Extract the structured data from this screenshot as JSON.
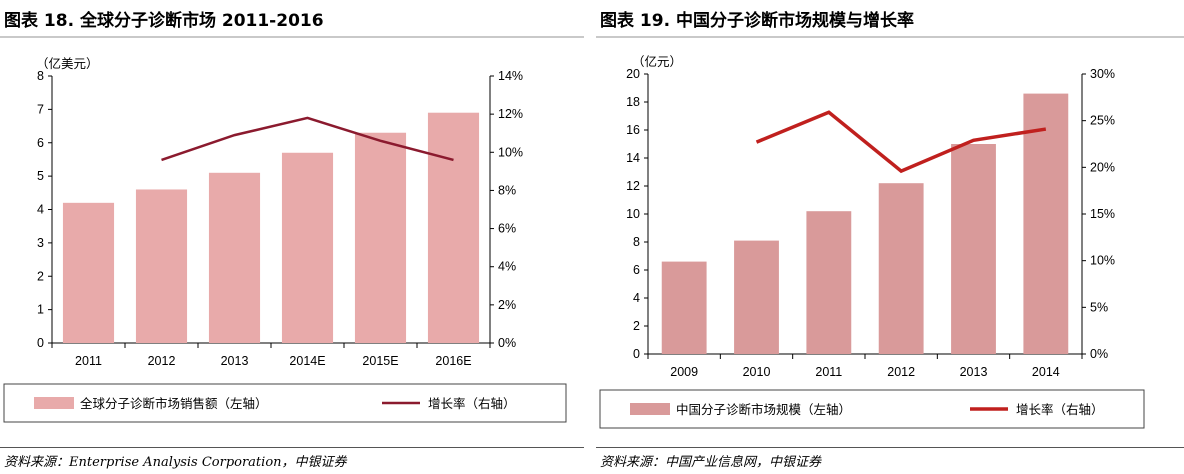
{
  "left": {
    "title": "图表 18. 全球分子诊断市场 2011-2016",
    "source": "资料来源：Enterprise Analysis Corporation，中银证券",
    "unit": "（亿美元）",
    "legend": {
      "bar": "全球分子诊断市场销售额（左轴）",
      "line": "增长率（右轴）"
    },
    "colors": {
      "bar": "#e8aaaa",
      "line": "#8b1a2e"
    },
    "chart_data": {
      "type": "bar",
      "categories": [
        "2011",
        "2012",
        "2013",
        "2014E",
        "2015E",
        "2016E"
      ],
      "series": [
        {
          "name": "全球分子诊断市场销售额（左轴）",
          "type": "bar",
          "axis": "left",
          "values": [
            4.2,
            4.6,
            5.1,
            5.7,
            6.3,
            6.9
          ]
        },
        {
          "name": "增长率（右轴）",
          "type": "line",
          "axis": "right",
          "values": [
            null,
            0.096,
            0.109,
            0.118,
            0.106,
            0.096
          ]
        }
      ],
      "ylim": [
        0,
        8
      ],
      "yticks": [
        0,
        1,
        2,
        3,
        4,
        5,
        6,
        7,
        8
      ],
      "y2lim": [
        0,
        0.14
      ],
      "y2ticks": [
        "0%",
        "2%",
        "4%",
        "6%",
        "8%",
        "10%",
        "12%",
        "14%"
      ],
      "grid": false,
      "legend": "bottom"
    }
  },
  "right": {
    "title": "图表 19. 中国分子诊断市场规模与增长率",
    "source": "资料来源：中国产业信息网，中银证券",
    "unit": "（亿元）",
    "legend": {
      "bar": "中国分子诊断市场规模（左轴）",
      "line": "增长率（右轴）"
    },
    "colors": {
      "bar": "#d99a9a",
      "line": "#c0201e"
    },
    "chart_data": {
      "type": "bar",
      "categories": [
        "2009",
        "2010",
        "2011",
        "2012",
        "2013",
        "2014"
      ],
      "series": [
        {
          "name": "中国分子诊断市场规模（左轴）",
          "type": "bar",
          "axis": "left",
          "values": [
            6.6,
            8.1,
            10.2,
            12.2,
            15.0,
            18.6
          ]
        },
        {
          "name": "增长率（右轴）",
          "type": "line",
          "axis": "right",
          "values": [
            null,
            0.227,
            0.259,
            0.196,
            0.229,
            0.241
          ]
        }
      ],
      "ylim": [
        0,
        20
      ],
      "yticks": [
        0,
        2,
        4,
        6,
        8,
        10,
        12,
        14,
        16,
        18,
        20
      ],
      "y2lim": [
        0,
        0.3
      ],
      "y2ticks": [
        "0%",
        "5%",
        "10%",
        "15%",
        "20%",
        "25%",
        "30%"
      ],
      "grid": false,
      "legend": "bottom"
    }
  }
}
